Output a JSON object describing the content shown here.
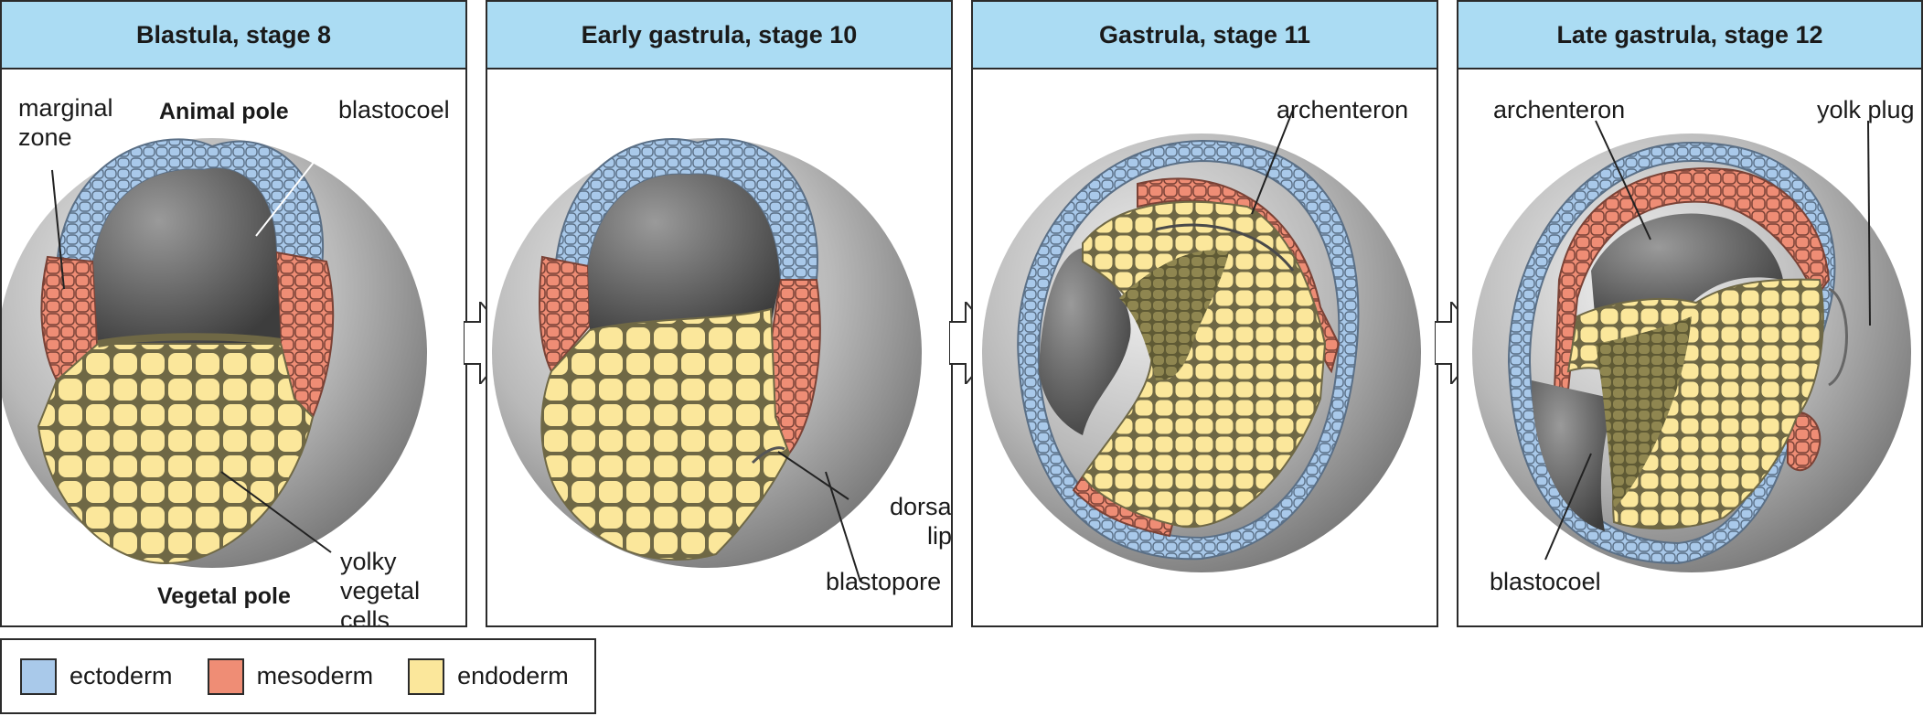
{
  "colors": {
    "ectoderm": "#a9c9ea",
    "mesoderm": "#ef8d75",
    "endoderm": "#fbe79b",
    "outline": "#6f6845",
    "header": "#abdcf3"
  },
  "panels": [
    {
      "title": "Blastula, stage 8",
      "labels": [
        "marginal\nzone",
        "Animal pole",
        "blastocoel",
        "yolky\nvegetal cells",
        "Vegetal pole"
      ]
    },
    {
      "title": "Early gastrula, stage 10",
      "labels": [
        "dorsal\nlip",
        "blastopore"
      ]
    },
    {
      "title": "Gastrula, stage 11",
      "labels": [
        "archenteron"
      ]
    },
    {
      "title": "Late gastrula, stage 12",
      "labels": [
        "archenteron",
        "yolk plug",
        "blastocoel"
      ]
    }
  ],
  "legend": [
    {
      "label": "ectoderm",
      "color": "#a9c9ea"
    },
    {
      "label": "mesoderm",
      "color": "#ef8d75"
    },
    {
      "label": "endoderm",
      "color": "#fbe79b"
    }
  ]
}
